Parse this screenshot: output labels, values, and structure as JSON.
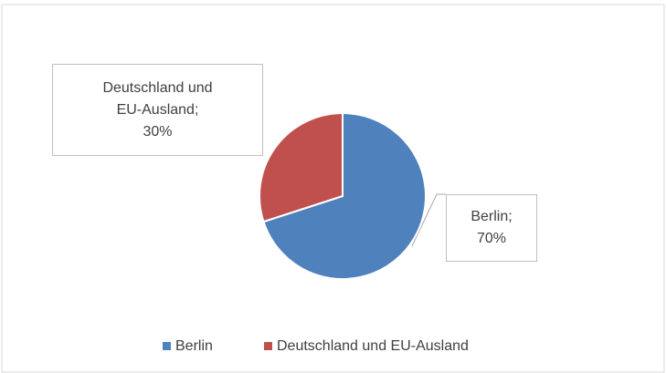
{
  "chart_data": {
    "type": "pie",
    "categories": [
      "Berlin",
      "Deutschland und EU-Ausland"
    ],
    "values": [
      70,
      30
    ],
    "value_labels": [
      "Berlin;\n70%",
      "Deutschland und\nEU-Ausland;\n30%"
    ],
    "colors": [
      "#4f81bd",
      "#c0504d"
    ],
    "legend": "bottom"
  }
}
